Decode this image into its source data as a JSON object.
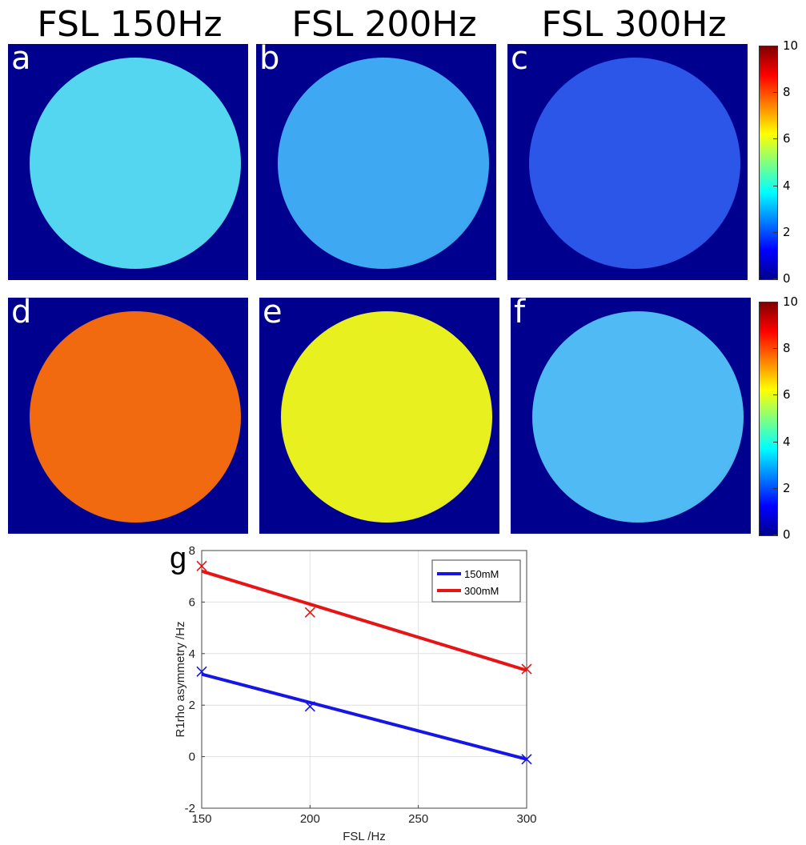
{
  "column_titles": [
    "FSL 150Hz",
    "FSL 200Hz",
    "FSL 300Hz"
  ],
  "panel_letters": [
    "a",
    "b",
    "c",
    "d",
    "e",
    "f",
    "g"
  ],
  "colorbar": {
    "min": 0,
    "max": 10,
    "ticks": [
      "0",
      "2",
      "4",
      "6",
      "8",
      "10"
    ]
  },
  "panel_fill_colors": {
    "a": "#55d6f0",
    "b": "#3fa8f2",
    "c": "#2b56e8",
    "d": "#f26a10",
    "e": "#e8f020",
    "f": "#4fbaf4"
  },
  "chart_data": {
    "type": "line",
    "panel_label": "g",
    "xlabel": "FSL /Hz",
    "ylabel": "R1rho asymmetry /Hz",
    "xlim": [
      150,
      300
    ],
    "ylim": [
      -2,
      8
    ],
    "xticks": [
      "150",
      "200",
      "250",
      "300"
    ],
    "yticks": [
      "-2",
      "0",
      "2",
      "4",
      "6",
      "8"
    ],
    "grid": true,
    "legend_position": "top-right",
    "series": [
      {
        "name": "150mM",
        "color": "#1515e6",
        "points_x": [
          150,
          200,
          300
        ],
        "points_y": [
          3.3,
          1.95,
          -0.1
        ],
        "fit_x": [
          150,
          300
        ],
        "fit_y": [
          3.2,
          -0.1
        ]
      },
      {
        "name": "300mM",
        "color": "#e61515",
        "points_x": [
          150,
          200,
          300
        ],
        "points_y": [
          7.4,
          5.6,
          3.4
        ],
        "fit_x": [
          150,
          300
        ],
        "fit_y": [
          7.2,
          3.35
        ]
      }
    ]
  }
}
